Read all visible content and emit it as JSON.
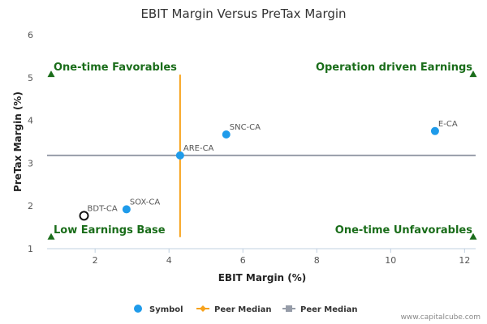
{
  "chart_data": {
    "type": "scatter",
    "title": "EBIT Margin Versus PreTax Margin",
    "xlabel": "EBIT Margin (%)",
    "ylabel": "PreTax Margin (%)",
    "xlim": [
      0.7,
      12.3
    ],
    "ylim": [
      1,
      6
    ],
    "xticks": [
      2,
      4,
      6,
      8,
      10,
      12
    ],
    "yticks": [
      1,
      2,
      3,
      4,
      5,
      6
    ],
    "points": [
      {
        "label": "E-CA",
        "x": 11.2,
        "y": 3.75,
        "style": "filled"
      },
      {
        "label": "SNC-CA",
        "x": 5.55,
        "y": 3.67,
        "style": "filled"
      },
      {
        "label": "ARE-CA",
        "x": 4.3,
        "y": 3.18,
        "style": "filled"
      },
      {
        "label": "SOX-CA",
        "x": 2.85,
        "y": 1.92,
        "style": "filled"
      },
      {
        "label": "BDT-CA",
        "x": 1.7,
        "y": 1.77,
        "style": "hollow"
      }
    ],
    "peer_median_x": 4.3,
    "peer_median_y": 3.18,
    "quadrants": {
      "top_left": "One-time Favorables",
      "top_right": "Operation driven Earnings",
      "bottom_left": "Low Earnings Base",
      "bottom_right": "One-time Unfavorables"
    },
    "legend": [
      {
        "name": "Symbol",
        "marker": "circle"
      },
      {
        "name": "Peer Median",
        "marker": "diamond-line"
      },
      {
        "name": "Peer Median",
        "marker": "square-line"
      }
    ],
    "legend_position": "bottom",
    "grid": false
  },
  "colors": {
    "point": "#1f9bea",
    "median_vertical": "#f7a21b",
    "median_horizontal": "#969ca8",
    "quadrant_text": "#1a6d1a",
    "axis": "#c0d0e0"
  },
  "watermark": "www.capitalcube.com"
}
